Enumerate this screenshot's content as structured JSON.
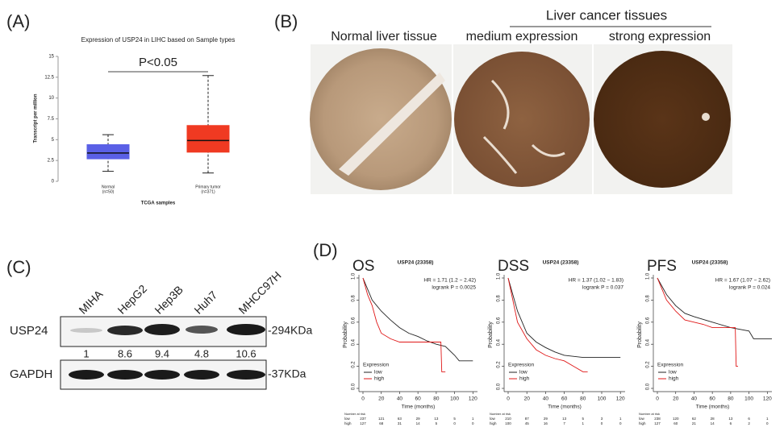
{
  "panel_labels": [
    "(A)",
    "(B)",
    "(C)",
    "(D)"
  ],
  "histology": {
    "group_label": "Liver cancer tissues",
    "captions": [
      "Normal liver tissue",
      "medium expression",
      "strong expression"
    ]
  },
  "western_blot": {
    "lanes": [
      "MIHA",
      "HepG2",
      "Hep3B",
      "Huh7",
      "MHCC97H"
    ],
    "rows": [
      {
        "name": "USP24",
        "size": "-294KDa"
      },
      {
        "name": "GAPDH",
        "size": "-37KDa"
      }
    ],
    "quantification": [
      1,
      8.6,
      9.4,
      4.8,
      10.6
    ]
  },
  "chart_data": [
    {
      "type": "box",
      "title": "Expression of USP24 in LIHC based on Sample types",
      "ylabel": "Transcript per million",
      "xlabel": "TCGA samples",
      "annotation": "P<0.05",
      "categories": [
        "Normal",
        "Primary tumor"
      ],
      "category_notes": [
        "(n=50)",
        "(n=371)"
      ],
      "boxes": [
        {
          "color": "#5a60e6",
          "min": 1.2,
          "q1": 2.7,
          "median": 3.4,
          "q3": 4.4,
          "max": 5.6
        },
        {
          "color": "#f03a22",
          "min": 1.0,
          "q1": 3.5,
          "median": 4.9,
          "q3": 6.7,
          "max": 12.7
        }
      ],
      "ylim": [
        0,
        15
      ],
      "yticks": [
        0,
        2.5,
        5,
        7.5,
        10,
        12.5,
        15
      ]
    },
    {
      "type": "km",
      "label": "OS",
      "title": "USP24 (23358)",
      "annotations": [
        "HR = 1.71 (1.2 − 2.42)",
        "logrank P = 0.0025"
      ],
      "xlabel": "Time (months)",
      "ylabel": "Probability",
      "legend_title": "Expression",
      "xlim": [
        0,
        125
      ],
      "xticks": [
        0,
        20,
        40,
        60,
        80,
        100,
        120
      ],
      "ylim": [
        0,
        1
      ],
      "yticks": [
        {
          "value": 0,
          "label": "0.0"
        },
        0.2,
        0.4,
        0.6,
        0.8,
        {
          "value": 1,
          "label": "1.0"
        }
      ],
      "series": [
        {
          "name": "low",
          "color": "#222222",
          "x": [
            0,
            5,
            10,
            20,
            30,
            40,
            50,
            60,
            70,
            80,
            90,
            100,
            105,
            120
          ],
          "values": [
            1.0,
            0.9,
            0.8,
            0.7,
            0.62,
            0.55,
            0.5,
            0.47,
            0.43,
            0.4,
            0.38,
            0.3,
            0.25,
            0.25
          ]
        },
        {
          "name": "high",
          "color": "#e01818",
          "x": [
            0,
            5,
            10,
            15,
            20,
            30,
            40,
            60,
            85,
            86,
            90
          ],
          "values": [
            1.0,
            0.85,
            0.75,
            0.6,
            0.5,
            0.45,
            0.42,
            0.42,
            0.42,
            0.15,
            0.15
          ]
        }
      ],
      "at_risk": {
        "title": "Number at risk",
        "rows": [
          {
            "name": "low",
            "values": [
              237,
              121,
              63,
              29,
              13,
              5,
              1
            ]
          },
          {
            "name": "high",
            "values": [
              127,
              68,
              31,
              14,
              5,
              0,
              0
            ]
          }
        ]
      }
    },
    {
      "type": "km",
      "label": "DSS",
      "title": "USP24 (23358)",
      "annotations": [
        "HR = 1.37 (1.02 − 1.83)",
        "logrank P = 0.037"
      ],
      "xlabel": "Time (months)",
      "ylabel": "Probability",
      "legend_title": "Expression",
      "xlim": [
        0,
        125
      ],
      "xticks": [
        0,
        20,
        40,
        60,
        80,
        100,
        120
      ],
      "ylim": [
        0,
        1
      ],
      "yticks": [
        {
          "value": 0,
          "label": "0.0"
        },
        0.2,
        0.4,
        0.6,
        0.8,
        {
          "value": 1,
          "label": "1.0"
        }
      ],
      "series": [
        {
          "name": "low",
          "color": "#222222",
          "x": [
            0,
            5,
            10,
            20,
            30,
            40,
            50,
            60,
            80,
            120
          ],
          "values": [
            1.0,
            0.85,
            0.7,
            0.5,
            0.42,
            0.37,
            0.33,
            0.3,
            0.28,
            0.28
          ]
        },
        {
          "name": "high",
          "color": "#e01818",
          "x": [
            0,
            5,
            10,
            20,
            30,
            40,
            50,
            60,
            70,
            80,
            85
          ],
          "values": [
            1.0,
            0.8,
            0.6,
            0.45,
            0.35,
            0.3,
            0.27,
            0.25,
            0.2,
            0.15,
            0.15
          ]
        }
      ],
      "at_risk": {
        "title": "Number at risk",
        "rows": [
          {
            "name": "low",
            "values": [
              210,
              87,
              29,
              13,
              5,
              3,
              1
            ]
          },
          {
            "name": "high",
            "values": [
              100,
              45,
              16,
              7,
              1,
              0,
              0
            ]
          }
        ]
      }
    },
    {
      "type": "km",
      "label": "PFS",
      "title": "USP24 (23358)",
      "annotations": [
        "HR = 1.67 (1.07 − 2.62)",
        "logrank P = 0.024"
      ],
      "xlabel": "Time (months)",
      "ylabel": "Probability",
      "legend_title": "Expression",
      "xlim": [
        0,
        125
      ],
      "xticks": [
        0,
        20,
        40,
        60,
        80,
        100,
        120
      ],
      "ylim": [
        0,
        1
      ],
      "yticks": [
        {
          "value": 0,
          "label": "0.0"
        },
        0.2,
        0.4,
        0.6,
        0.8,
        {
          "value": 1,
          "label": "1.0"
        }
      ],
      "series": [
        {
          "name": "low",
          "color": "#222222",
          "x": [
            0,
            10,
            20,
            30,
            40,
            60,
            80,
            100,
            105,
            125
          ],
          "values": [
            1.0,
            0.85,
            0.75,
            0.68,
            0.65,
            0.6,
            0.55,
            0.52,
            0.45,
            0.45
          ]
        },
        {
          "name": "high",
          "color": "#e01818",
          "x": [
            0,
            10,
            20,
            30,
            40,
            50,
            60,
            85,
            86,
            88
          ],
          "values": [
            1.0,
            0.8,
            0.7,
            0.62,
            0.6,
            0.58,
            0.55,
            0.55,
            0.2,
            0.2
          ]
        }
      ],
      "at_risk": {
        "title": "Number at risk",
        "rows": [
          {
            "name": "low",
            "values": [
              238,
              120,
              62,
              28,
              13,
              6,
              1
            ]
          },
          {
            "name": "high",
            "values": [
              127,
              60,
              21,
              14,
              6,
              2,
              0
            ]
          }
        ]
      }
    }
  ]
}
